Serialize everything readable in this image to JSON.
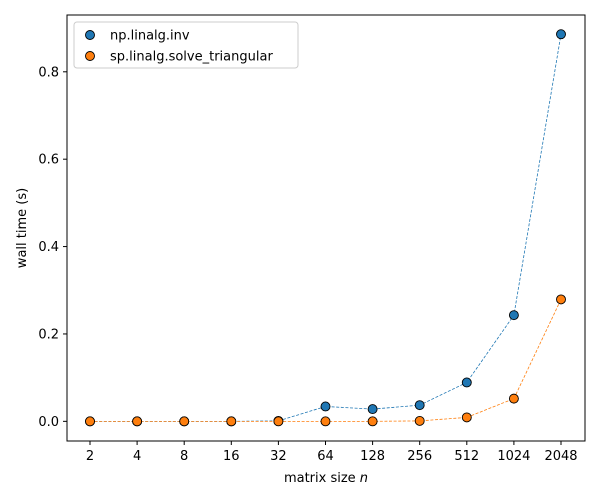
{
  "chart_data": {
    "type": "scatter",
    "title": "",
    "xlabel_prefix": "matrix size ",
    "xlabel_var": "n",
    "ylabel": "wall time (s)",
    "x": [
      "2",
      "4",
      "8",
      "16",
      "32",
      "64",
      "128",
      "256",
      "512",
      "1024",
      "2048"
    ],
    "y_ticks": [
      "0.0",
      "0.2",
      "0.4",
      "0.6",
      "0.8"
    ],
    "y_tick_values": [
      0.0,
      0.2,
      0.4,
      0.6,
      0.8
    ],
    "ylim": [
      -0.045,
      0.93
    ],
    "grid": false,
    "legend_position": "top-left",
    "series": [
      {
        "name": "np.linalg.inv",
        "color": "#1f77b4",
        "values": [
          0.0,
          0.0,
          0.0,
          0.0,
          0.001,
          0.034,
          0.028,
          0.037,
          0.089,
          0.243,
          0.886
        ]
      },
      {
        "name": "sp.linalg.solve_triangular",
        "color": "#ff7f0e",
        "values": [
          0.0,
          0.0,
          0.0,
          0.0,
          0.0,
          0.0,
          0.0,
          0.001,
          0.009,
          0.052,
          0.279
        ]
      }
    ]
  }
}
